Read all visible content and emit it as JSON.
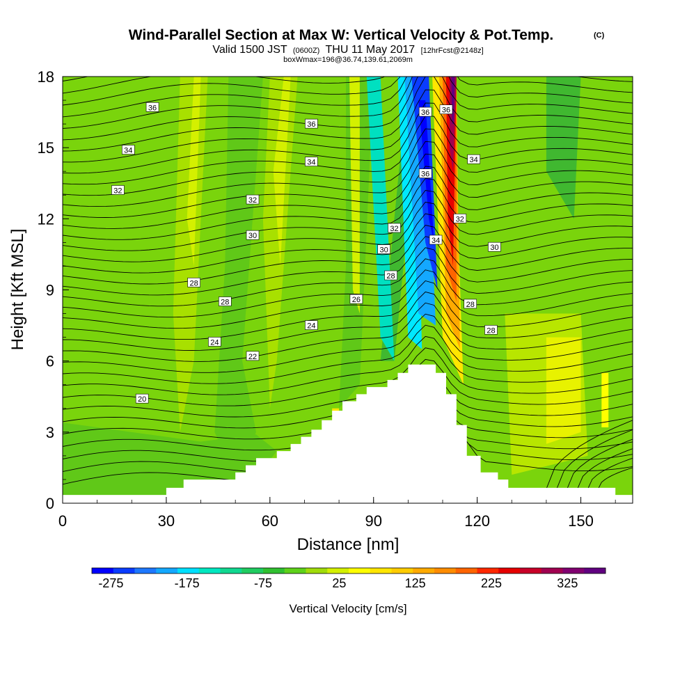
{
  "chart_data": {
    "type": "heatmap",
    "title": {
      "main": "Wind-Parallel Section at Max W: Vertical Velocity & Pot.Temp.",
      "copyright": "(C)",
      "valid_prefix": "Valid 1500 JST",
      "utc": "(0600Z)",
      "valid_suffix": "THU 11 May 2017",
      "forecast": "[12hrFcst@2148z]",
      "box_info": "boxWmax=196@36.74,139.61,2069m"
    },
    "xlabel": "Distance [nm]",
    "ylabel": "Height [Kft MSL]",
    "xlim": [
      0,
      165
    ],
    "ylim": [
      0,
      18
    ],
    "x_ticks": [
      0,
      30,
      60,
      90,
      120,
      150
    ],
    "y_ticks": [
      0,
      3,
      6,
      9,
      12,
      15,
      18
    ],
    "colorbar": {
      "label": "Vertical Velocity [cm/s]",
      "min": -300,
      "max": 375,
      "tick_values": [
        -275,
        -175,
        -75,
        25,
        125,
        225,
        325
      ],
      "tick_labels": [
        "-275",
        "-175",
        "-75",
        "25",
        "125",
        "225",
        "325"
      ],
      "colors": [
        "#0000ff",
        "#0a3cff",
        "#1e78ff",
        "#14a8ff",
        "#00e0ff",
        "#00e8c0",
        "#10d890",
        "#20cc60",
        "#30c030",
        "#5ed21a",
        "#a0dc0a",
        "#d4f000",
        "#ffff00",
        "#ffe600",
        "#ffcc00",
        "#ffaa00",
        "#ff8c00",
        "#ff6400",
        "#ff2800",
        "#e60000",
        "#c80028",
        "#a00050",
        "#800070",
        "#600080"
      ]
    },
    "terrain": [
      [
        0,
        0.35
      ],
      [
        30,
        0.35
      ],
      [
        30,
        0.65
      ],
      [
        35,
        0.65
      ],
      [
        35,
        1.0
      ],
      [
        50,
        1.0
      ],
      [
        50,
        1.3
      ],
      [
        53,
        1.3
      ],
      [
        53,
        1.6
      ],
      [
        56,
        1.6
      ],
      [
        56,
        1.9
      ],
      [
        62,
        1.9
      ],
      [
        62,
        2.2
      ],
      [
        66,
        2.2
      ],
      [
        66,
        2.5
      ],
      [
        69,
        2.5
      ],
      [
        69,
        2.8
      ],
      [
        72,
        2.8
      ],
      [
        72,
        3.1
      ],
      [
        75,
        3.1
      ],
      [
        75,
        3.5
      ],
      [
        78,
        3.5
      ],
      [
        78,
        3.9
      ],
      [
        81,
        3.9
      ],
      [
        81,
        4.3
      ],
      [
        85,
        4.3
      ],
      [
        85,
        4.6
      ],
      [
        88,
        4.6
      ],
      [
        88,
        4.9
      ],
      [
        94,
        4.9
      ],
      [
        94,
        5.2
      ],
      [
        97,
        5.2
      ],
      [
        97,
        5.5
      ],
      [
        100,
        5.5
      ],
      [
        100,
        5.85
      ],
      [
        108,
        5.85
      ],
      [
        108,
        5.5
      ],
      [
        111,
        5.5
      ],
      [
        111,
        4.6
      ],
      [
        114,
        4.6
      ],
      [
        114,
        3.3
      ],
      [
        117,
        3.3
      ],
      [
        117,
        2.0
      ],
      [
        121,
        2.0
      ],
      [
        121,
        1.3
      ],
      [
        126,
        1.3
      ],
      [
        126,
        1.0
      ],
      [
        129,
        1.0
      ],
      [
        129,
        0.65
      ],
      [
        160,
        0.65
      ],
      [
        160,
        0.35
      ],
      [
        165,
        0.35
      ]
    ],
    "contour_labels": [
      {
        "text": "36",
        "x": 26,
        "y": 16.7
      },
      {
        "text": "34",
        "x": 19,
        "y": 14.9
      },
      {
        "text": "32",
        "x": 16,
        "y": 13.2
      },
      {
        "text": "36",
        "x": 72,
        "y": 16.0
      },
      {
        "text": "34",
        "x": 72,
        "y": 14.4
      },
      {
        "text": "32",
        "x": 55,
        "y": 12.8
      },
      {
        "text": "30",
        "x": 55,
        "y": 11.3
      },
      {
        "text": "28",
        "x": 38,
        "y": 9.3
      },
      {
        "text": "28",
        "x": 47,
        "y": 8.5
      },
      {
        "text": "26",
        "x": 85,
        "y": 8.6
      },
      {
        "text": "24",
        "x": 72,
        "y": 7.5
      },
      {
        "text": "24",
        "x": 44,
        "y": 6.8
      },
      {
        "text": "22",
        "x": 55,
        "y": 6.2
      },
      {
        "text": "20",
        "x": 23,
        "y": 4.4
      },
      {
        "text": "36",
        "x": 105,
        "y": 16.5
      },
      {
        "text": "36",
        "x": 111,
        "y": 16.6
      },
      {
        "text": "34",
        "x": 119,
        "y": 14.5
      },
      {
        "text": "36",
        "x": 105,
        "y": 13.9
      },
      {
        "text": "32",
        "x": 115,
        "y": 12.0
      },
      {
        "text": "32",
        "x": 96,
        "y": 11.6
      },
      {
        "text": "34",
        "x": 108,
        "y": 11.1
      },
      {
        "text": "30",
        "x": 93,
        "y": 10.7
      },
      {
        "text": "30",
        "x": 125,
        "y": 10.8
      },
      {
        "text": "28",
        "x": 95,
        "y": 9.6
      },
      {
        "text": "28",
        "x": 118,
        "y": 8.4
      },
      {
        "text": "28",
        "x": 124,
        "y": 7.3
      }
    ]
  }
}
